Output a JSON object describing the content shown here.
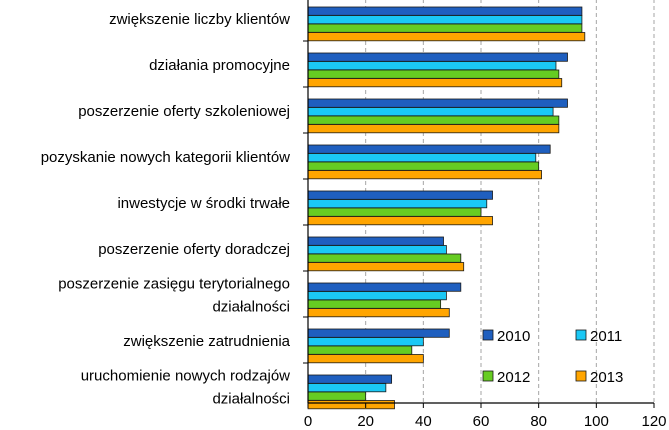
{
  "chart_data": {
    "type": "bar",
    "orientation": "horizontal",
    "title": "",
    "xlabel": "",
    "ylabel": "",
    "xlim": [
      0,
      120
    ],
    "xticks": [
      0,
      20,
      40,
      60,
      80,
      100,
      120
    ],
    "grid": "vertical dashed",
    "legend_position": "bottom-right",
    "categories": [
      [
        "zwiększenie liczby klientów"
      ],
      [
        "działania promocyjne"
      ],
      [
        "poszerzenie oferty szkoleniowej"
      ],
      [
        "pozyskanie nowych kategorii klientów"
      ],
      [
        "inwestycje w środki trwałe"
      ],
      [
        "poszerzenie oferty doradczej"
      ],
      [
        "poszerzenie zasięgu terytorialnego",
        "działalności"
      ],
      [
        "zwiększenie zatrudnienia"
      ],
      [
        "uruchomienie nowych rodzajów",
        "działalności"
      ]
    ],
    "series": [
      {
        "name": "2010",
        "color": "#1F5FBF",
        "values": [
          95,
          90,
          90,
          84,
          64,
          47,
          53,
          49,
          29
        ]
      },
      {
        "name": "2011",
        "color": "#1BC8F5",
        "values": [
          95,
          86,
          85,
          79,
          62,
          48,
          48,
          40,
          27
        ]
      },
      {
        "name": "2012",
        "color": "#66CC22",
        "values": [
          95,
          87,
          87,
          80,
          60,
          53,
          46,
          36,
          20
        ]
      },
      {
        "name": "2013",
        "color": "#FFA500",
        "values": [
          96,
          88,
          87,
          81,
          64,
          54,
          49,
          40,
          30
        ]
      }
    ]
  }
}
